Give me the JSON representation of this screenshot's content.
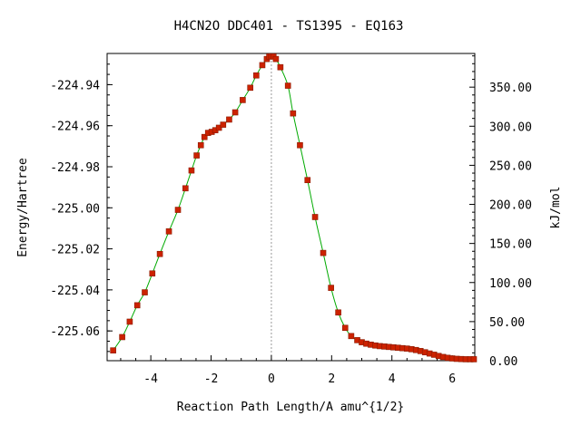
{
  "chart_data": {
    "type": "line",
    "title": "H4CN2O   DDC401 - TS1395 - EQ163",
    "xlabel": "Reaction Path Length/A amu^{1/2}",
    "ylabel": "Energy/Hartree",
    "y2label": "kJ/mol",
    "xlim": [
      -5.45,
      6.75
    ],
    "ylim": [
      -225.0745,
      -224.9248
    ],
    "y2lim": [
      0,
      393.1
    ],
    "xticks": [
      -4,
      -2,
      0,
      2,
      4,
      6
    ],
    "xtick_labels": [
      "-4",
      "-2",
      "0",
      "2",
      "4",
      "6"
    ],
    "yticks": [
      -224.94,
      -224.96,
      -224.98,
      -225.0,
      -225.02,
      -225.04,
      -225.06
    ],
    "ytick_labels": [
      "-224.94",
      "-224.96",
      "-224.98",
      "-225.00",
      "-225.02",
      "-225.04",
      "-225.06"
    ],
    "y2ticks": [
      350,
      300,
      250,
      200,
      150,
      100,
      50,
      0
    ],
    "y2tick_labels": [
      "350.00",
      "300.00",
      "250.00",
      "200.00",
      "150.00",
      "100.00",
      "50.00",
      "0.00"
    ],
    "ts_marker_x": 0,
    "colors": {
      "line": "#00aa00",
      "marker": "#cc2200",
      "vline": "#999999"
    },
    "series": [
      {
        "x": [
          -5.25,
          -4.95,
          -4.7,
          -4.45,
          -4.2,
          -3.95,
          -3.7,
          -3.4,
          -3.1,
          -2.85,
          -2.65,
          -2.48,
          -2.34,
          -2.22,
          -2.1,
          -1.98,
          -1.86,
          -1.74,
          -1.6,
          -1.4,
          -1.2,
          -0.95,
          -0.7,
          -0.5,
          -0.3,
          -0.15,
          -0.07,
          0.0,
          0.07,
          0.15,
          0.3,
          0.55,
          0.72,
          0.95,
          1.2,
          1.45,
          1.72,
          1.98,
          2.22,
          2.45,
          2.65,
          2.85,
          3.0,
          3.15,
          3.3,
          3.45,
          3.6,
          3.75,
          3.9,
          4.05,
          4.2,
          4.35,
          4.5,
          4.65,
          4.8,
          4.95,
          5.1,
          5.25,
          5.4,
          5.55,
          5.7,
          5.85,
          6.0,
          6.15,
          6.3,
          6.45,
          6.6,
          6.72
        ],
        "y": [
          -225.0695,
          -225.063,
          -225.0555,
          -225.0475,
          -225.0412,
          -225.032,
          -225.0225,
          -225.0115,
          -225.001,
          -224.9905,
          -224.9818,
          -224.9745,
          -224.9695,
          -224.9655,
          -224.9635,
          -224.963,
          -224.9622,
          -224.961,
          -224.9595,
          -224.957,
          -224.9535,
          -224.9475,
          -224.9415,
          -224.9355,
          -224.9305,
          -224.9275,
          -224.9263,
          -224.9262,
          -224.9263,
          -224.9275,
          -224.9315,
          -224.9405,
          -224.954,
          -224.9695,
          -224.9865,
          -225.0045,
          -225.022,
          -225.039,
          -225.051,
          -225.0585,
          -225.0625,
          -225.0645,
          -225.0655,
          -225.0662,
          -225.0667,
          -225.0671,
          -225.0674,
          -225.0676,
          -225.0678,
          -225.068,
          -225.0682,
          -225.0684,
          -225.0686,
          -225.0689,
          -225.0693,
          -225.0698,
          -225.0704,
          -225.071,
          -225.0716,
          -225.0722,
          -225.0727,
          -225.0731,
          -225.0734,
          -225.0736,
          -225.0737,
          -225.0738,
          -225.0738,
          -225.0738
        ]
      }
    ]
  }
}
